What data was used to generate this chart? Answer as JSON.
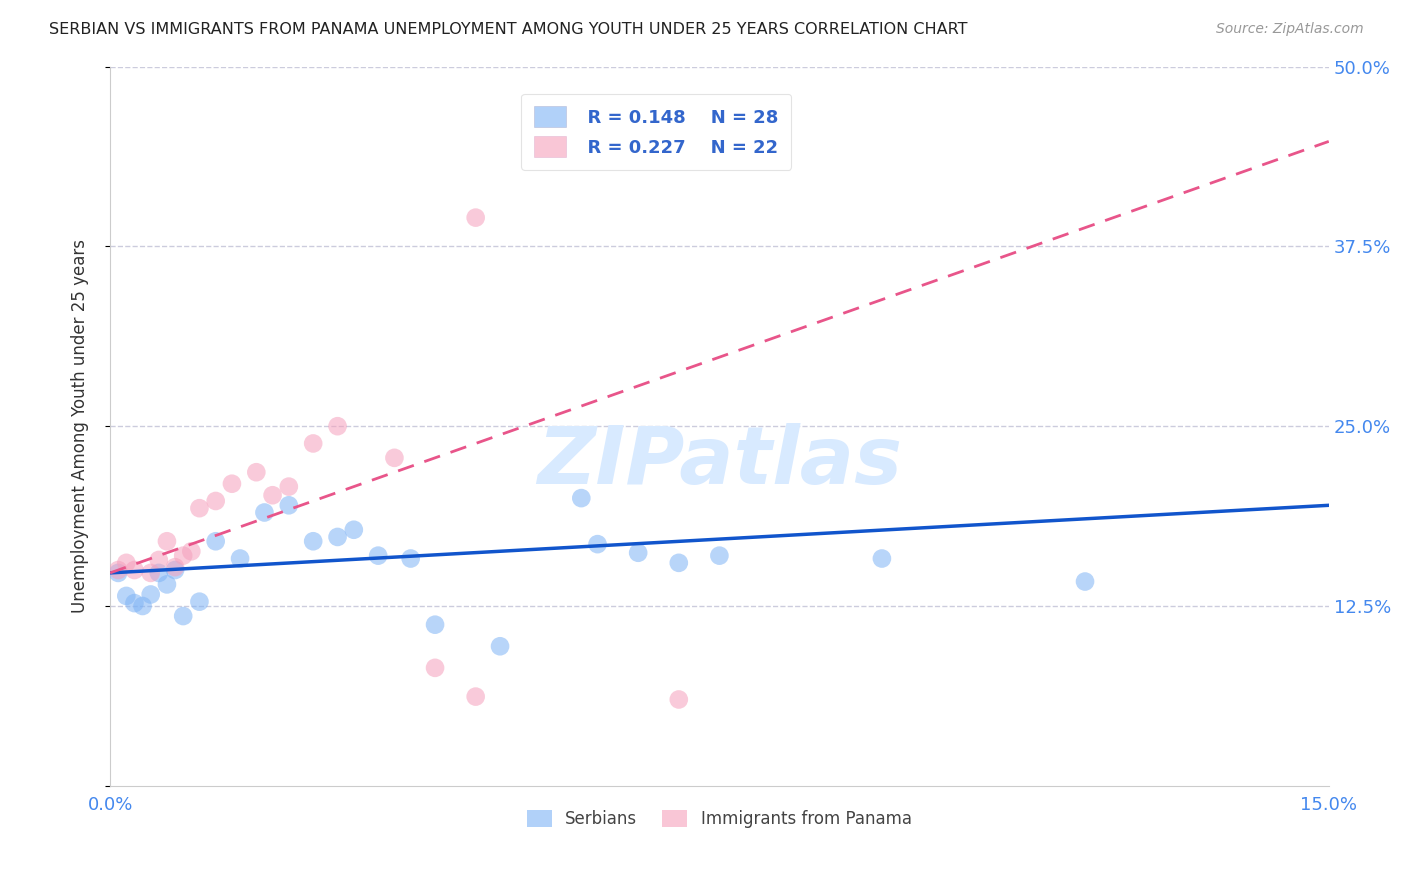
{
  "title": "SERBIAN VS IMMIGRANTS FROM PANAMA UNEMPLOYMENT AMONG YOUTH UNDER 25 YEARS CORRELATION CHART",
  "source": "Source: ZipAtlas.com",
  "ylabel": "Unemployment Among Youth under 25 years",
  "xlim": [
    0.0,
    0.15
  ],
  "ylim": [
    0.0,
    0.5
  ],
  "yticks": [
    0.0,
    0.125,
    0.25,
    0.375,
    0.5
  ],
  "ytick_labels_right": [
    "",
    "12.5%",
    "25.0%",
    "37.5%",
    "50.0%"
  ],
  "xticks": [
    0.0,
    0.15
  ],
  "xtick_labels": [
    "0.0%",
    "15.0%"
  ],
  "serbian_color": "#7EB3F5",
  "panama_color": "#F5A0BC",
  "trendline_serbian_color": "#1155CC",
  "trendline_panama_color": "#E8558A",
  "R_serbian": 0.148,
  "N_serbian": 28,
  "R_panama": 0.227,
  "N_panama": 22,
  "watermark": "ZIPatlas",
  "legend_labels": [
    "Serbians",
    "Immigrants from Panama"
  ],
  "serbian_x": [
    0.001,
    0.002,
    0.003,
    0.004,
    0.005,
    0.006,
    0.007,
    0.008,
    0.009,
    0.011,
    0.013,
    0.016,
    0.019,
    0.022,
    0.025,
    0.028,
    0.03,
    0.033,
    0.037,
    0.04,
    0.048,
    0.058,
    0.06,
    0.065,
    0.07,
    0.075,
    0.095,
    0.12
  ],
  "serbian_y": [
    0.148,
    0.132,
    0.127,
    0.125,
    0.133,
    0.148,
    0.14,
    0.15,
    0.118,
    0.128,
    0.17,
    0.158,
    0.19,
    0.195,
    0.17,
    0.173,
    0.178,
    0.16,
    0.158,
    0.112,
    0.097,
    0.2,
    0.168,
    0.162,
    0.155,
    0.16,
    0.158,
    0.142
  ],
  "panama_x": [
    0.001,
    0.002,
    0.003,
    0.005,
    0.006,
    0.007,
    0.008,
    0.009,
    0.01,
    0.011,
    0.013,
    0.015,
    0.018,
    0.02,
    0.022,
    0.025,
    0.028,
    0.035,
    0.04,
    0.045,
    0.045,
    0.07
  ],
  "panama_y": [
    0.15,
    0.155,
    0.15,
    0.148,
    0.157,
    0.17,
    0.152,
    0.16,
    0.163,
    0.193,
    0.198,
    0.21,
    0.218,
    0.202,
    0.208,
    0.238,
    0.25,
    0.228,
    0.082,
    0.395,
    0.062,
    0.06
  ],
  "trendline_s_x0": 0.0,
  "trendline_s_y0": 0.148,
  "trendline_s_x1": 0.15,
  "trendline_s_y1": 0.195,
  "trendline_p_x0": 0.0,
  "trendline_p_y0": 0.148,
  "trendline_p_x1": 0.15,
  "trendline_p_y1": 0.448
}
